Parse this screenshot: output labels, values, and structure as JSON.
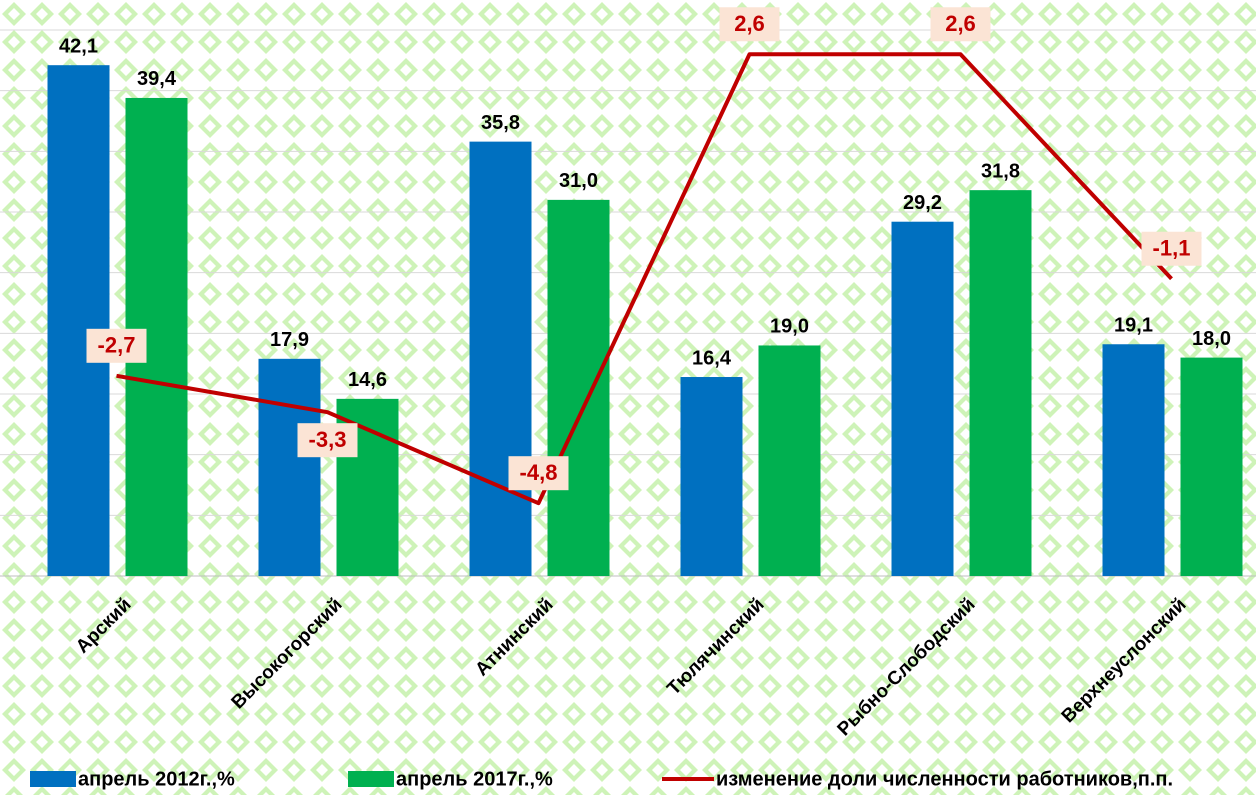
{
  "chart_data": {
    "type": "bar_line",
    "categories": [
      "Арский",
      "Высокогорский",
      "Атнинский",
      "Тюлячинский",
      "Рыбно-Слободский",
      "Верхнеуслонский"
    ],
    "series": [
      {
        "name": "апрель 2012г.,%",
        "color": "#0070c0",
        "type": "bar",
        "values": [
          42.1,
          17.9,
          35.8,
          16.4,
          29.2,
          19.1
        ],
        "value_labels": [
          "42,1",
          "17,9",
          "35,8",
          "16,4",
          "29,2",
          "19,1"
        ]
      },
      {
        "name": "апрель 2017г.,%",
        "color": "#00b050",
        "type": "bar",
        "values": [
          39.4,
          14.6,
          31.0,
          19.0,
          31.8,
          18.0
        ],
        "value_labels": [
          "39,4",
          "14,6",
          "31,0",
          "19,0",
          "31,8",
          "18,0"
        ]
      },
      {
        "name": "изменение доли численности работников,п.п.",
        "color": "#c00000",
        "type": "line",
        "axis": "y2",
        "values": [
          -2.7,
          -3.3,
          -4.8,
          2.6,
          2.6,
          -1.1
        ],
        "value_labels": [
          "-2,7",
          "-3,3",
          "-4,8",
          "2,6",
          "2,6",
          "-1,1"
        ]
      }
    ],
    "ylim": [
      0,
      45
    ],
    "yticks": [
      0,
      5,
      10,
      15,
      20,
      25,
      30,
      35,
      40,
      45
    ],
    "y2lim": [
      -6,
      3
    ],
    "grid": true,
    "legend": "bottom"
  }
}
